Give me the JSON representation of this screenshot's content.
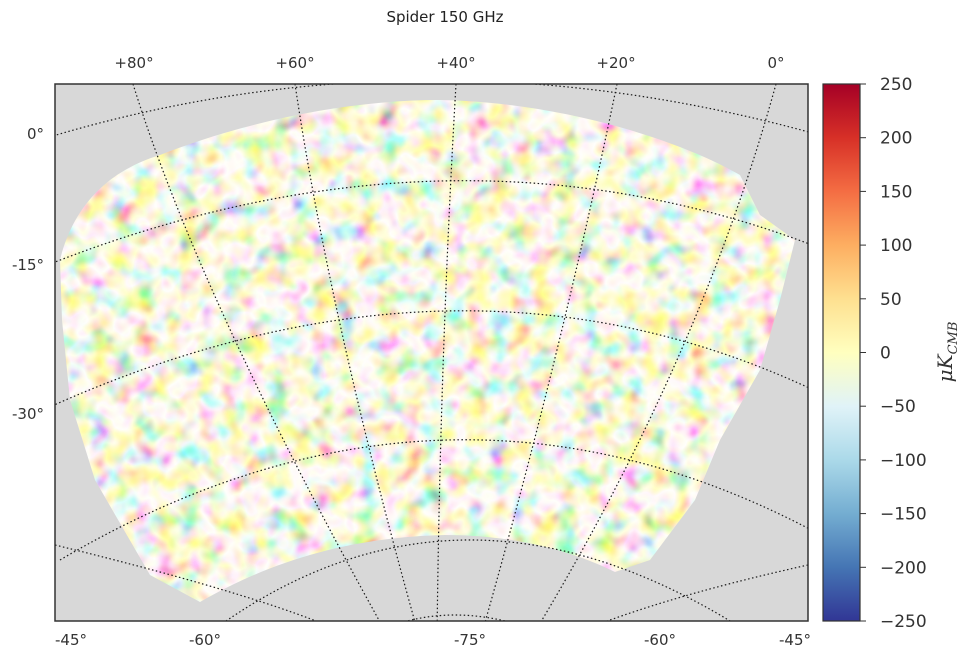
{
  "chart_data": {
    "type": "heatmap",
    "title": "Spider 150 GHz",
    "projection": "orthographic sky map (celestial grid)",
    "top_ticks": [
      "+80°",
      "+60°",
      "+40°",
      "+20°",
      "0°"
    ],
    "left_ticks": [
      "0°",
      "-15°",
      "-30°"
    ],
    "bottom_ticks": [
      "-45°",
      "-60°",
      "-75°",
      "-60°",
      "-45°"
    ],
    "colorbar": {
      "label_main": "μK",
      "label_sub": "CMB",
      "range": [
        -250,
        250
      ],
      "ticks": [
        250,
        200,
        150,
        100,
        50,
        0,
        -50,
        -100,
        -150,
        -200,
        -250
      ],
      "tick_labels": [
        "250",
        "200",
        "150",
        "100",
        "50",
        "0",
        "−50",
        "−100",
        "−150",
        "−200",
        "−250"
      ],
      "colormap": "RdYlBu_r",
      "stops": [
        "#313695",
        "#4575b4",
        "#74add1",
        "#abd9e9",
        "#e0f3f8",
        "#ffffbf",
        "#fee090",
        "#fdae61",
        "#f46d43",
        "#d73027",
        "#a50026"
      ]
    },
    "background_color": "#d8d8d8",
    "grid": "dotted",
    "values": "CMB temperature anisotropy field, approx. range -250 to 250"
  }
}
